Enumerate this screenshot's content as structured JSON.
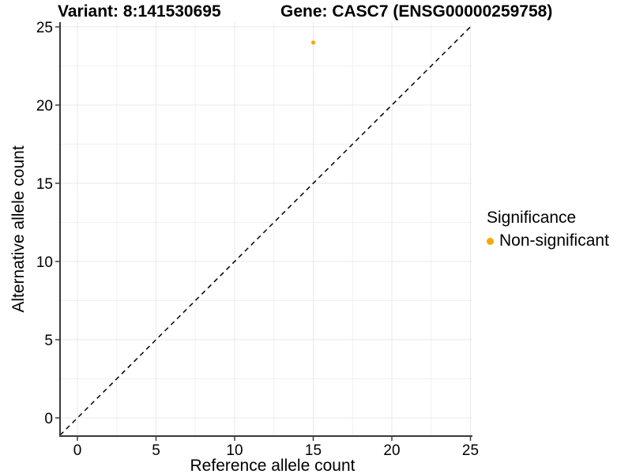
{
  "titles": {
    "variant": "Variant: 8:141530695",
    "gene": "Gene: CASC7 (ENSG00000259758)"
  },
  "legend": {
    "title": "Significance",
    "items": [
      {
        "label": "Non-significant",
        "color": "#FFA500"
      }
    ]
  },
  "colors": {
    "background": "#FFFFFF",
    "grid_major": "#E9E9E9",
    "grid_minor": "#F1F1F1",
    "axis_line": "#3A3A3A",
    "tick_mark": "#3A3A3A",
    "text": "#000000",
    "point": "#FFA500",
    "identity_line": "#000000"
  },
  "chart_data": {
    "type": "scatter",
    "title_left": "Variant: 8:141530695",
    "title_right": "Gene: CASC7 (ENSG00000259758)",
    "xlabel": "Reference allele count",
    "ylabel": "Alternative allele count",
    "xlim": [
      -1.1,
      25.2
    ],
    "ylim": [
      -1.2,
      25.3
    ],
    "xticks": [
      0,
      5,
      10,
      15,
      20,
      25
    ],
    "yticks": [
      0,
      5,
      10,
      15,
      20,
      25
    ],
    "x_minor_ticks": [
      2.5,
      7.5,
      12.5,
      17.5,
      22.5
    ],
    "y_minor_ticks": [
      2.5,
      7.5,
      12.5,
      17.5,
      22.5
    ],
    "grid": true,
    "legend_position": "right",
    "series": [
      {
        "name": "Non-significant",
        "color": "#FFA500",
        "points": [
          {
            "x": 15,
            "y": 24
          }
        ]
      }
    ],
    "reference_line": {
      "type": "abline",
      "slope": 1,
      "intercept": 0,
      "style": "dashed",
      "color": "#000000"
    }
  }
}
